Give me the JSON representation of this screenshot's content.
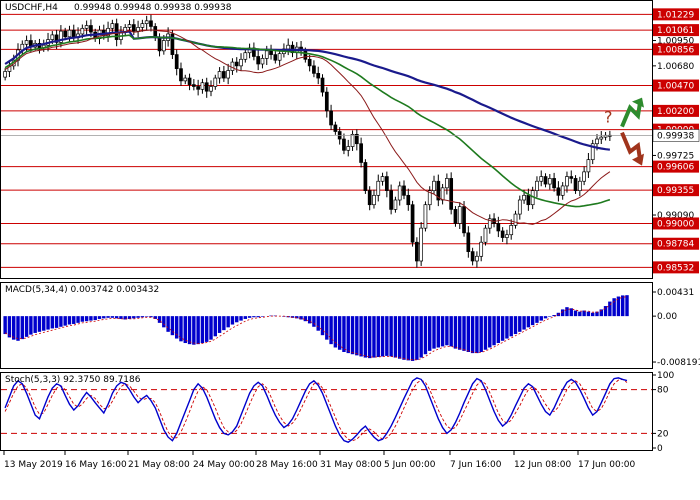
{
  "chart_data": [
    {
      "type": "candlestick",
      "header": {
        "symbol": "USDCHF,H4",
        "ohlc": "0.99948 0.99948 0.99938 0.99938"
      },
      "y_ticks": [
        "1.01229",
        "1.01061",
        "1.00950",
        "1.00856",
        "1.00680",
        "1.00470",
        "1.00200",
        "1.00000",
        "0.99938",
        "0.99725",
        "0.99606",
        "0.99355",
        "0.99090",
        "0.99000",
        "0.98784",
        "0.98532"
      ],
      "level_labels": [
        "1.01229",
        "1.01061",
        "1.00856",
        "1.00470",
        "1.00200",
        "1.00000",
        "0.99606",
        "0.99355",
        "0.99000",
        "0.98784",
        "0.98532"
      ],
      "current_price_label": "0.99938",
      "ylim": [
        0.9844,
        1.0135
      ],
      "x_tick_labels": [
        "13 May 2019",
        "16 May 16:00",
        "21 May 08:00",
        "24 May 00:00",
        "28 May 16:00",
        "31 May 08:00",
        "5 Jun 00:00",
        "7 Jun 16:00",
        "12 Jun 08:00",
        "17 Jun 00:00"
      ],
      "closes": [
        1.0062,
        1.0068,
        1.0074,
        1.0085,
        1.0091,
        1.0095,
        1.0088,
        1.0092,
        1.0087,
        1.009,
        1.0096,
        1.0101,
        1.0093,
        1.0105,
        1.0099,
        1.0106,
        1.0098,
        1.0102,
        1.0108,
        1.0111,
        1.0104,
        1.0097,
        1.0106,
        1.01,
        1.0108,
        1.0113,
        1.0096,
        1.0104,
        1.0109,
        1.0112,
        1.0105,
        1.0109,
        1.0113,
        1.0116,
        1.011,
        1.0098,
        1.0084,
        1.0095,
        1.0102,
        1.008,
        1.0065,
        1.0052,
        1.0055,
        1.0048,
        1.0046,
        1.0043,
        1.005,
        1.0041,
        1.0046,
        1.0055,
        1.0062,
        1.0055,
        1.0063,
        1.0072,
        1.0068,
        1.0075,
        1.0082,
        1.0087,
        1.0078,
        1.007,
        1.0076,
        1.0084,
        1.008,
        1.0074,
        1.0081,
        1.0086,
        1.009,
        1.0082,
        1.0088,
        1.0084,
        1.0075,
        1.0068,
        1.006,
        1.0055,
        1.004,
        1.002,
        1.0005,
        0.9998,
        0.999,
        0.9978,
        0.9982,
        0.9995,
        0.9985,
        0.9965,
        0.9935,
        0.992,
        0.993,
        0.9945,
        0.995,
        0.9935,
        0.9915,
        0.9925,
        0.994,
        0.993,
        0.992,
        0.988,
        0.986,
        0.9895,
        0.992,
        0.9935,
        0.9945,
        0.9925,
        0.9938,
        0.9948,
        0.9915,
        0.99,
        0.9918,
        0.989,
        0.987,
        0.986,
        0.9865,
        0.988,
        0.9895,
        0.9905,
        0.99,
        0.9892,
        0.9885,
        0.9888,
        0.9898,
        0.991,
        0.9925,
        0.993,
        0.992,
        0.9935,
        0.9945,
        0.995,
        0.9942,
        0.9948,
        0.9938,
        0.993,
        0.994,
        0.995,
        0.9948,
        0.9935,
        0.9945,
        0.9955,
        0.9968,
        0.9985,
        0.999,
        0.9992,
        0.9994,
        0.99938
      ],
      "moving_averages": [
        {
          "color": "#1a1a8c",
          "period": 100
        },
        {
          "color": "#1e7a1e",
          "period": 50
        },
        {
          "color": "#8b1a1a",
          "period": 20
        }
      ],
      "annotations": {
        "question_mark": "?",
        "up_arrow_color": "#2e8b2e",
        "down_arrow_color": "#a0341c"
      }
    },
    {
      "type": "histogram",
      "header": "MACD(5,34,4) 0.003742 0.003432",
      "y_ticks": [
        "0.00431",
        "0.00",
        "-0.008191"
      ],
      "ylim": [
        -0.0089,
        0.0052
      ],
      "bar_color": "#0000cc",
      "values": [
        -0.0032,
        -0.0038,
        -0.0042,
        -0.0044,
        -0.0041,
        -0.0037,
        -0.0033,
        -0.003,
        -0.0028,
        -0.0026,
        -0.0024,
        -0.0022,
        -0.0021,
        -0.0019,
        -0.0017,
        -0.0015,
        -0.0014,
        -0.0012,
        -0.001,
        -0.0009,
        -0.0008,
        -0.0007,
        -0.0005,
        -0.0004,
        -0.0003,
        -0.0003,
        -0.0004,
        -0.0005,
        -0.0006,
        -0.0005,
        -0.0004,
        -0.0003,
        -0.0002,
        -0.0001,
        -0.0002,
        -0.0005,
        -0.0012,
        -0.002,
        -0.0028,
        -0.0034,
        -0.004,
        -0.0045,
        -0.0048,
        -0.005,
        -0.0051,
        -0.005,
        -0.0048,
        -0.0046,
        -0.0042,
        -0.0036,
        -0.003,
        -0.0025,
        -0.002,
        -0.0015,
        -0.0011,
        -0.0008,
        -0.0005,
        -0.0003,
        -0.0002,
        -0.0002,
        -0.0001,
        0.0,
        0.0001,
        0.0001,
        0.0,
        -0.0001,
        -0.0002,
        -0.0003,
        -0.0004,
        -0.0006,
        -0.0009,
        -0.0013,
        -0.0019,
        -0.0026,
        -0.0034,
        -0.0042,
        -0.005,
        -0.0056,
        -0.006,
        -0.0064,
        -0.0066,
        -0.0068,
        -0.007,
        -0.0072,
        -0.0074,
        -0.0075,
        -0.0074,
        -0.0073,
        -0.0072,
        -0.0071,
        -0.0072,
        -0.0074,
        -0.0076,
        -0.0078,
        -0.0079,
        -0.008,
        -0.0078,
        -0.0074,
        -0.0068,
        -0.0062,
        -0.0058,
        -0.0056,
        -0.0054,
        -0.0052,
        -0.0054,
        -0.0058,
        -0.006,
        -0.0062,
        -0.0064,
        -0.0066,
        -0.0066,
        -0.0064,
        -0.006,
        -0.0056,
        -0.0052,
        -0.0048,
        -0.0044,
        -0.004,
        -0.0036,
        -0.0032,
        -0.0028,
        -0.0024,
        -0.002,
        -0.0016,
        -0.0012,
        -0.0008,
        -0.0004,
        -0.0001,
        0.0002,
        0.0006,
        0.0012,
        0.0016,
        0.0014,
        0.001,
        0.0008,
        0.001,
        0.0008,
        0.0006,
        0.0008,
        0.0012,
        0.0018,
        0.0026,
        0.0032,
        0.0035,
        0.0037,
        0.003742
      ],
      "signal": [
        -0.003,
        -0.0034,
        -0.0038,
        -0.004,
        -0.004,
        -0.0039,
        -0.0036,
        -0.0033,
        -0.0031,
        -0.0029,
        -0.0027,
        -0.0025,
        -0.0023,
        -0.0021,
        -0.0019,
        -0.0017,
        -0.0016,
        -0.0014,
        -0.0012,
        -0.0011,
        -0.001,
        -0.0009,
        -0.0007,
        -0.0006,
        -0.0005,
        -0.0004,
        -0.0004,
        -0.0005,
        -0.0005,
        -0.0005,
        -0.0005,
        -0.0004,
        -0.0003,
        -0.0002,
        -0.0002,
        -0.0004,
        -0.0008,
        -0.0014,
        -0.0021,
        -0.0027,
        -0.0033,
        -0.0039,
        -0.0043,
        -0.0046,
        -0.0048,
        -0.0049,
        -0.0049,
        -0.0047,
        -0.0045,
        -0.0041,
        -0.0036,
        -0.0031,
        -0.0026,
        -0.0021,
        -0.0017,
        -0.0013,
        -0.0009,
        -0.0006,
        -0.0004,
        -0.0003,
        -0.0002,
        -0.0001,
        0.0,
        0.0,
        0.0,
        0.0,
        -0.0001,
        -0.0002,
        -0.0003,
        -0.0004,
        -0.0006,
        -0.0009,
        -0.0013,
        -0.0019,
        -0.0025,
        -0.0032,
        -0.004,
        -0.0047,
        -0.0053,
        -0.0058,
        -0.0062,
        -0.0065,
        -0.0067,
        -0.0069,
        -0.0071,
        -0.0073,
        -0.0073,
        -0.0073,
        -0.0072,
        -0.0072,
        -0.0072,
        -0.0073,
        -0.0074,
        -0.0076,
        -0.0077,
        -0.0078,
        -0.0078,
        -0.0076,
        -0.0072,
        -0.0067,
        -0.0062,
        -0.0059,
        -0.0056,
        -0.0054,
        -0.0054,
        -0.0056,
        -0.0058,
        -0.006,
        -0.0062,
        -0.0064,
        -0.0065,
        -0.0065,
        -0.0062,
        -0.0059,
        -0.0055,
        -0.0051,
        -0.0047,
        -0.0043,
        -0.0039,
        -0.0035,
        -0.0031,
        -0.0027,
        -0.0023,
        -0.0019,
        -0.0015,
        -0.0011,
        -0.0007,
        -0.0004,
        -0.0001,
        0.0003,
        0.0008,
        0.0012,
        0.0013,
        0.0011,
        0.0009,
        0.0009,
        0.0009,
        0.0007,
        0.0007,
        0.001,
        0.0014,
        0.002,
        0.0026,
        0.0031,
        0.0034,
        0.003432
      ]
    },
    {
      "type": "line",
      "header": "Stoch(5,3,3) 92.3750 89.7186",
      "y_ticks": [
        "100",
        "80",
        "20",
        "0"
      ],
      "ylim": [
        0,
        100
      ],
      "dashed_levels": [
        80,
        20
      ],
      "main_color": "#0000cc",
      "signal_color": "#cc0000",
      "main": [
        55,
        70,
        85,
        92,
        88,
        75,
        60,
        45,
        40,
        55,
        70,
        82,
        88,
        85,
        72,
        60,
        52,
        58,
        68,
        76,
        70,
        62,
        55,
        48,
        60,
        75,
        85,
        90,
        88,
        80,
        70,
        62,
        68,
        72,
        65,
        55,
        40,
        25,
        15,
        10,
        20,
        35,
        50,
        65,
        80,
        88,
        82,
        70,
        55,
        40,
        28,
        20,
        18,
        22,
        30,
        45,
        60,
        75,
        85,
        90,
        85,
        72,
        58,
        45,
        35,
        28,
        32,
        40,
        52,
        65,
        78,
        88,
        92,
        86,
        75,
        60,
        45,
        30,
        18,
        10,
        8,
        12,
        18,
        25,
        30,
        22,
        15,
        10,
        12,
        20,
        30,
        42,
        55,
        68,
        80,
        92,
        96,
        94,
        85,
        70,
        55,
        40,
        28,
        20,
        25,
        35,
        48,
        62,
        75,
        88,
        95,
        92,
        80,
        65,
        50,
        38,
        30,
        35,
        45,
        58,
        70,
        82,
        88,
        84,
        72,
        60,
        50,
        45,
        55,
        68,
        80,
        90,
        94,
        90,
        80,
        68,
        55,
        45,
        50,
        62,
        75,
        88,
        95,
        96,
        94,
        92.375
      ],
      "signal": [
        50,
        62,
        75,
        85,
        88,
        82,
        70,
        56,
        46,
        48,
        60,
        72,
        82,
        85,
        80,
        70,
        60,
        56,
        60,
        68,
        72,
        68,
        60,
        54,
        55,
        64,
        75,
        84,
        88,
        85,
        78,
        70,
        66,
        68,
        68,
        62,
        50,
        35,
        22,
        14,
        14,
        22,
        35,
        50,
        65,
        78,
        84,
        80,
        68,
        55,
        40,
        28,
        22,
        20,
        24,
        33,
        46,
        60,
        73,
        84,
        88,
        82,
        70,
        56,
        44,
        35,
        30,
        34,
        42,
        54,
        66,
        78,
        88,
        89,
        82,
        70,
        56,
        42,
        28,
        18,
        12,
        10,
        12,
        18,
        24,
        26,
        22,
        16,
        12,
        14,
        20,
        30,
        42,
        55,
        68,
        80,
        89,
        93,
        90,
        80,
        66,
        52,
        40,
        30,
        26,
        28,
        38,
        50,
        62,
        75,
        86,
        92,
        88,
        76,
        62,
        48,
        38,
        34,
        38,
        48,
        58,
        70,
        80,
        84,
        80,
        70,
        60,
        52,
        50,
        56,
        68,
        80,
        88,
        92,
        88,
        78,
        66,
        54,
        50,
        54,
        65,
        78,
        88,
        93,
        94,
        89.7186
      ]
    }
  ]
}
